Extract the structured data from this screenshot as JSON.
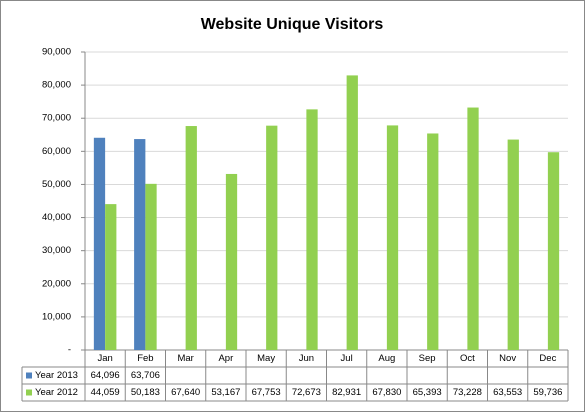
{
  "chart_data": {
    "type": "bar",
    "title": "Website Unique Visitors",
    "categories": [
      "Jan",
      "Feb",
      "Mar",
      "Apr",
      "May",
      "Jun",
      "Jul",
      "Aug",
      "Sep",
      "Oct",
      "Nov",
      "Dec"
    ],
    "series": [
      {
        "name": "Year 2013",
        "color": "#4f81bd",
        "values": [
          64096,
          63706,
          null,
          null,
          null,
          null,
          null,
          null,
          null,
          null,
          null,
          null
        ],
        "value_labels": [
          "64,096",
          "63,706",
          null,
          null,
          null,
          null,
          null,
          null,
          null,
          null,
          null,
          null
        ]
      },
      {
        "name": "Year 2012",
        "color": "#92d050",
        "values": [
          44059,
          50183,
          67640,
          53167,
          67753,
          72673,
          82931,
          67830,
          65393,
          73228,
          63553,
          59736
        ],
        "value_labels": [
          "44,059",
          "50,183",
          "67,640",
          "53,167",
          "67,753",
          "72,673",
          "82,931",
          "67,830",
          "65,393",
          "73,228",
          "63,553",
          "59,736"
        ]
      }
    ],
    "ylim": [
      0,
      90000
    ],
    "yticks": [
      {
        "value": 0,
        "label": "-"
      },
      {
        "value": 10000,
        "label": "10,000"
      },
      {
        "value": 20000,
        "label": "20,000"
      },
      {
        "value": 30000,
        "label": "30,000"
      },
      {
        "value": 40000,
        "label": "40,000"
      },
      {
        "value": 50000,
        "label": "50,000"
      },
      {
        "value": 60000,
        "label": "60,000"
      },
      {
        "value": 70000,
        "label": "70,000"
      },
      {
        "value": 80000,
        "label": "80,000"
      },
      {
        "value": 90000,
        "label": "90,000"
      }
    ],
    "grid": true
  }
}
